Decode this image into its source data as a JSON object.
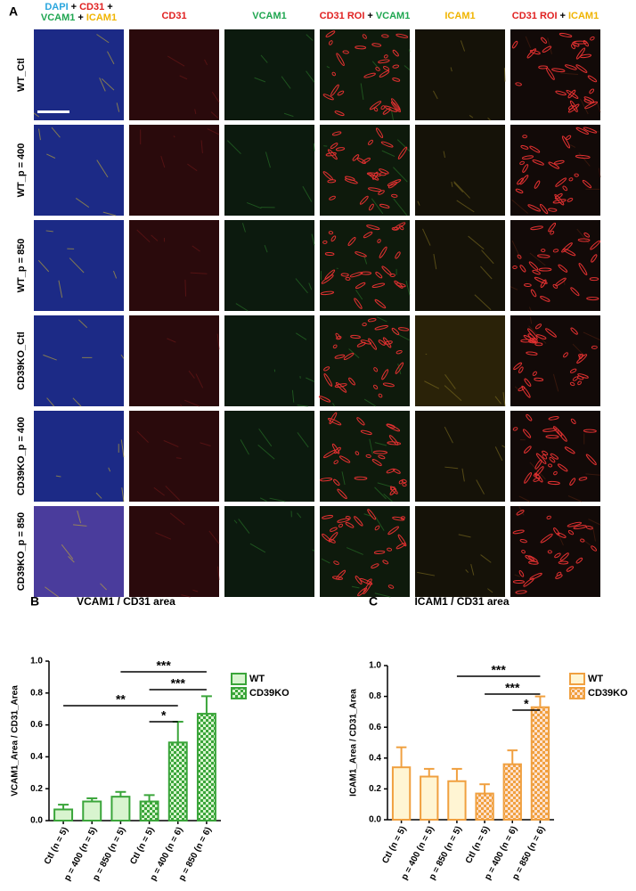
{
  "panel_a": {
    "label": "A",
    "columns": [
      {
        "lines": [
          [
            {
              "text": "DAPI",
              "color": "#2aa6de"
            },
            {
              "text": "+",
              "color": "#000000"
            },
            {
              "text": "CD31",
              "color": "#e02020"
            },
            {
              "text": "+",
              "color": "#000000"
            }
          ],
          [
            {
              "text": "VCAM1",
              "color": "#1fa650"
            },
            {
              "text": "+",
              "color": "#000000"
            },
            {
              "text": "ICAM1",
              "color": "#f0b400"
            }
          ]
        ]
      },
      {
        "lines": [
          [
            {
              "text": "CD31",
              "color": "#e02020"
            }
          ]
        ]
      },
      {
        "lines": [
          [
            {
              "text": "VCAM1",
              "color": "#1fa650"
            }
          ]
        ]
      },
      {
        "lines": [
          [
            {
              "text": "CD31 ROI",
              "color": "#e02020"
            },
            {
              "text": "+",
              "color": "#000000"
            },
            {
              "text": "VCAM1",
              "color": "#1fa650"
            }
          ]
        ]
      },
      {
        "lines": [
          [
            {
              "text": "ICAM1",
              "color": "#f0b400"
            }
          ]
        ]
      },
      {
        "lines": [
          [
            {
              "text": "CD31 ROI",
              "color": "#e02020"
            },
            {
              "text": "+",
              "color": "#000000"
            },
            {
              "text": "ICAM1",
              "color": "#f0b400"
            }
          ]
        ]
      }
    ],
    "rows": [
      "WT_Ctl",
      "WT_p = 400",
      "WT_p = 850",
      "CD39KO_Ctl",
      "CD39KO_p = 400",
      "CD39KO_p = 850"
    ]
  },
  "chart_data": [
    {
      "type": "bar",
      "panel": "B",
      "title": "VCAM1 / CD31 area",
      "y_label": "VCAM1_Area / CD31_Area",
      "categories": [
        "Ctl (n = 5)",
        "p = 400 (n = 5)",
        "p = 850 (n = 5)",
        "Ctl (n = 5)",
        "p = 400 (n = 6)",
        "p = 850 (n = 6)"
      ],
      "series": [
        {
          "name": "WT",
          "color": "#3aa53a",
          "fill": "#d8f4cf",
          "pattern": "solid",
          "values": [
            0.07,
            0.12,
            0.15,
            null,
            null,
            null
          ],
          "errors": [
            0.03,
            0.02,
            0.03,
            null,
            null,
            null
          ]
        },
        {
          "name": "CD39KO",
          "color": "#3aa53a",
          "fill": "#d8f4cf",
          "pattern": "checker",
          "values": [
            null,
            null,
            null,
            0.12,
            0.49,
            0.67
          ],
          "errors": [
            null,
            null,
            null,
            0.04,
            0.13,
            0.11
          ]
        }
      ],
      "ylim": [
        0,
        1
      ],
      "yticks": [
        {
          "value": 0,
          "label": "0.0"
        },
        0.2,
        0.4,
        0.6,
        0.8,
        {
          "value": 1,
          "label": "1.0"
        }
      ],
      "significance": [
        {
          "from": 2,
          "to": 5,
          "label": "***"
        },
        {
          "from": 3,
          "to": 5,
          "label": "***"
        },
        {
          "from": 0,
          "to": 4,
          "label": "**"
        },
        {
          "from": 3,
          "to": 4,
          "label": "*"
        }
      ]
    },
    {
      "type": "bar",
      "panel": "C",
      "title": "ICAM1 / CD31 area",
      "y_label": "ICAM1_Area / CD31_Area",
      "categories": [
        "Ctl (n = 5)",
        "p = 400 (n = 5)",
        "p = 850 (n = 5)",
        "Ctl (n = 5)",
        "p = 400 (n = 6)",
        "p = 850 (n = 6)"
      ],
      "series": [
        {
          "name": "WT",
          "color": "#f0a040",
          "fill": "#fff5d3",
          "pattern": "solid",
          "values": [
            0.34,
            0.28,
            0.25,
            null,
            null,
            null
          ],
          "errors": [
            0.13,
            0.05,
            0.08,
            null,
            null,
            null
          ]
        },
        {
          "name": "CD39KO",
          "color": "#f0a040",
          "fill": "#fde2cf",
          "pattern": "checker",
          "values": [
            null,
            null,
            null,
            0.17,
            0.36,
            0.73
          ],
          "errors": [
            null,
            null,
            null,
            0.06,
            0.09,
            0.07
          ]
        }
      ],
      "ylim": [
        0,
        1
      ],
      "yticks": [
        {
          "value": 0,
          "label": "0.0"
        },
        0.2,
        0.4,
        0.6,
        0.8,
        {
          "value": 1,
          "label": "1.0"
        }
      ],
      "significance": [
        {
          "from": 2,
          "to": 5,
          "label": "***"
        },
        {
          "from": 3,
          "to": 5,
          "label": "***"
        },
        {
          "from": 4,
          "to": 5,
          "label": "*"
        }
      ]
    }
  ]
}
